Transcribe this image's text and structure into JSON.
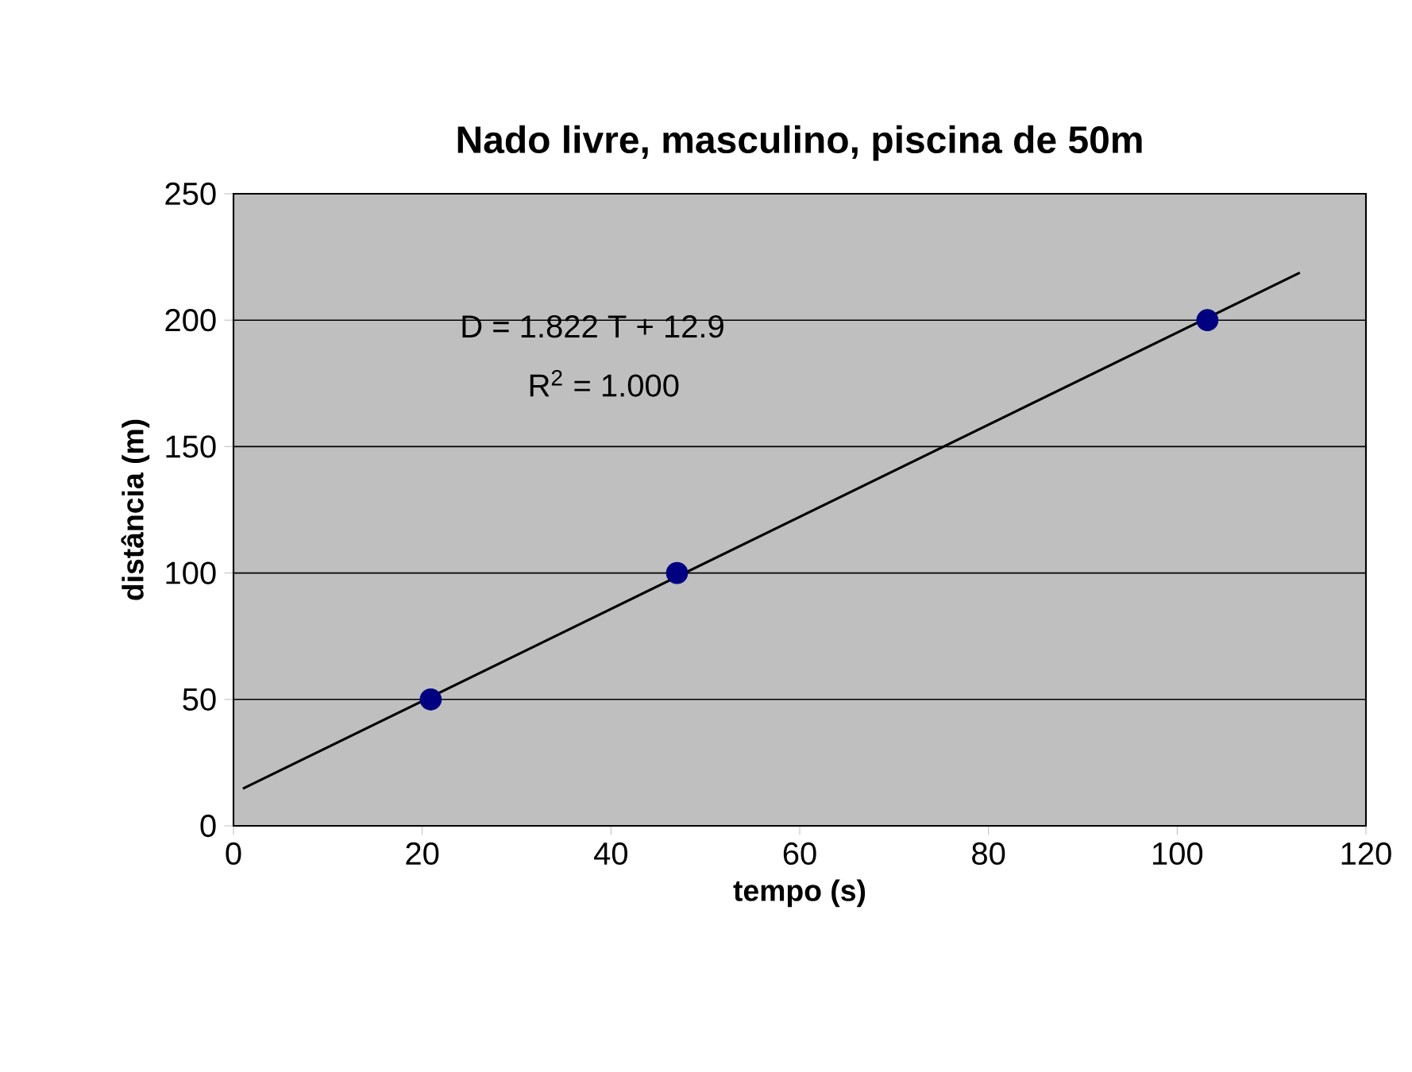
{
  "chart_data": {
    "type": "scatter",
    "title": "Nado livre, masculino, piscina de 50m",
    "xlabel": "tempo (s)",
    "ylabel": "distância (m)",
    "annotations": [
      "D = 1.822 T + 12.9",
      "R$^{2}$ = 1.000"
    ],
    "series": [
      {
        "color": "#000080",
        "marker": "circle",
        "x": [
          20.9,
          47.0,
          103.2
        ],
        "values": [
          50,
          100,
          200
        ]
      },
      {
        "type": "line",
        "color": "#000000",
        "marker": "none",
        "x": [
          1,
          113
        ],
        "values": [
          14.7,
          218.8
        ]
      }
    ],
    "xlim": [
      0,
      120
    ],
    "xticks": [
      0,
      20,
      40,
      60,
      80,
      100,
      120
    ],
    "ylim": [
      0,
      250
    ],
    "yticks": [
      0,
      50,
      100,
      150,
      200,
      250
    ],
    "grid": "y"
  }
}
